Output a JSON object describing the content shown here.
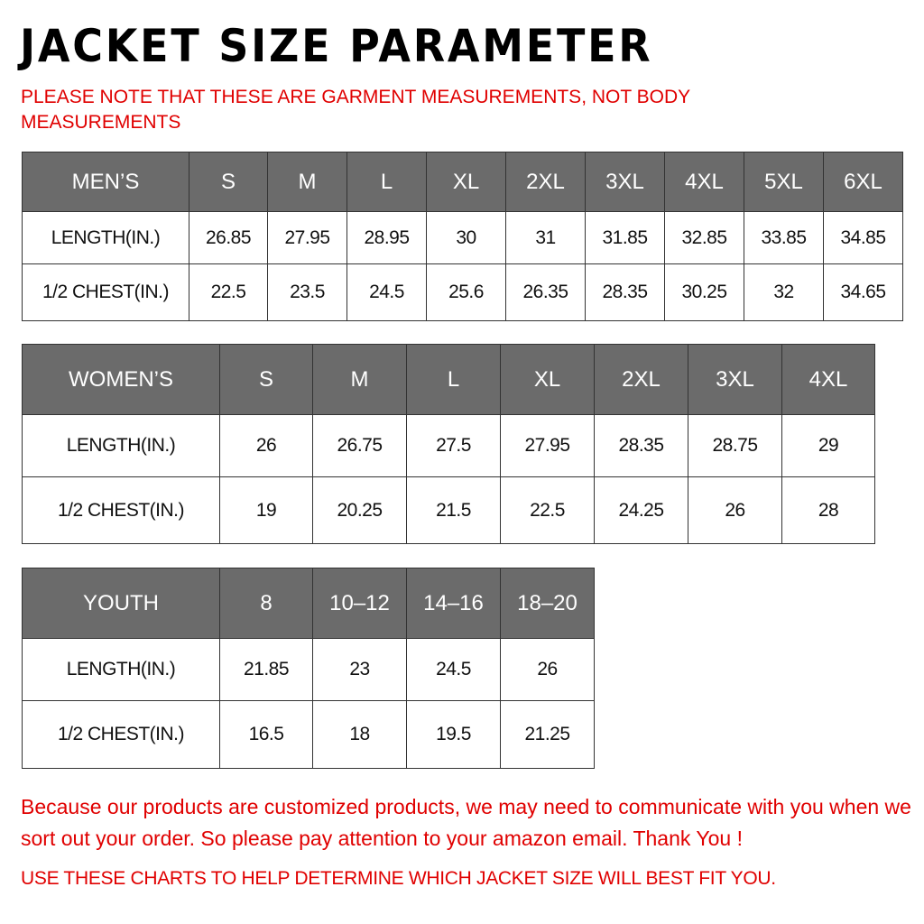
{
  "title": "JACKET SIZE PARAMETER",
  "note": "PLEASE NOTE THAT THESE ARE GARMENT MEASUREMENTS, NOT BODY MEASUREMENTS",
  "tables": [
    {
      "name": "mens",
      "header": [
        "MEN’S",
        "S",
        "M",
        "L",
        "XL",
        "2XL",
        "3XL",
        "4XL",
        "5XL",
        "6XL"
      ],
      "rows": [
        [
          "LENGTH(IN.)",
          "26.85",
          "27.95",
          "28.95",
          "30",
          "31",
          "31.85",
          "32.85",
          "33.85",
          "34.85"
        ],
        [
          "1/2 CHEST(IN.)",
          "22.5",
          "23.5",
          "24.5",
          "25.6",
          "26.35",
          "28.35",
          "30.25",
          "32",
          "34.65"
        ]
      ]
    },
    {
      "name": "womens",
      "header": [
        "WOMEN’S",
        "S",
        "M",
        "L",
        "XL",
        "2XL",
        "3XL",
        "4XL"
      ],
      "rows": [
        [
          "LENGTH(IN.)",
          "26",
          "26.75",
          "27.5",
          "27.95",
          "28.35",
          "28.75",
          "29"
        ],
        [
          "1/2 CHEST(IN.)",
          "19",
          "20.25",
          "21.5",
          "22.5",
          "24.25",
          "26",
          "28"
        ]
      ]
    },
    {
      "name": "youth",
      "header": [
        "YOUTH",
        "8",
        "10–12",
        "14–16",
        "18–20"
      ],
      "rows": [
        [
          "LENGTH(IN.)",
          "21.85",
          "23",
          "24.5",
          "26"
        ],
        [
          "1/2 CHEST(IN.)",
          "16.5",
          "18",
          "19.5",
          "21.25"
        ]
      ]
    }
  ],
  "footer": {
    "message": "Because our products are customized products, we may need to communicate with you when we sort out your order. So please pay attention to your amazon email. Thank You !",
    "advice": "USE THESE CHARTS TO HELP DETERMINE WHICH JACKET SIZE WILL BEST FIT YOU."
  },
  "colors": {
    "header_bg": "#6b6b6b",
    "note_red": "#e00000"
  }
}
